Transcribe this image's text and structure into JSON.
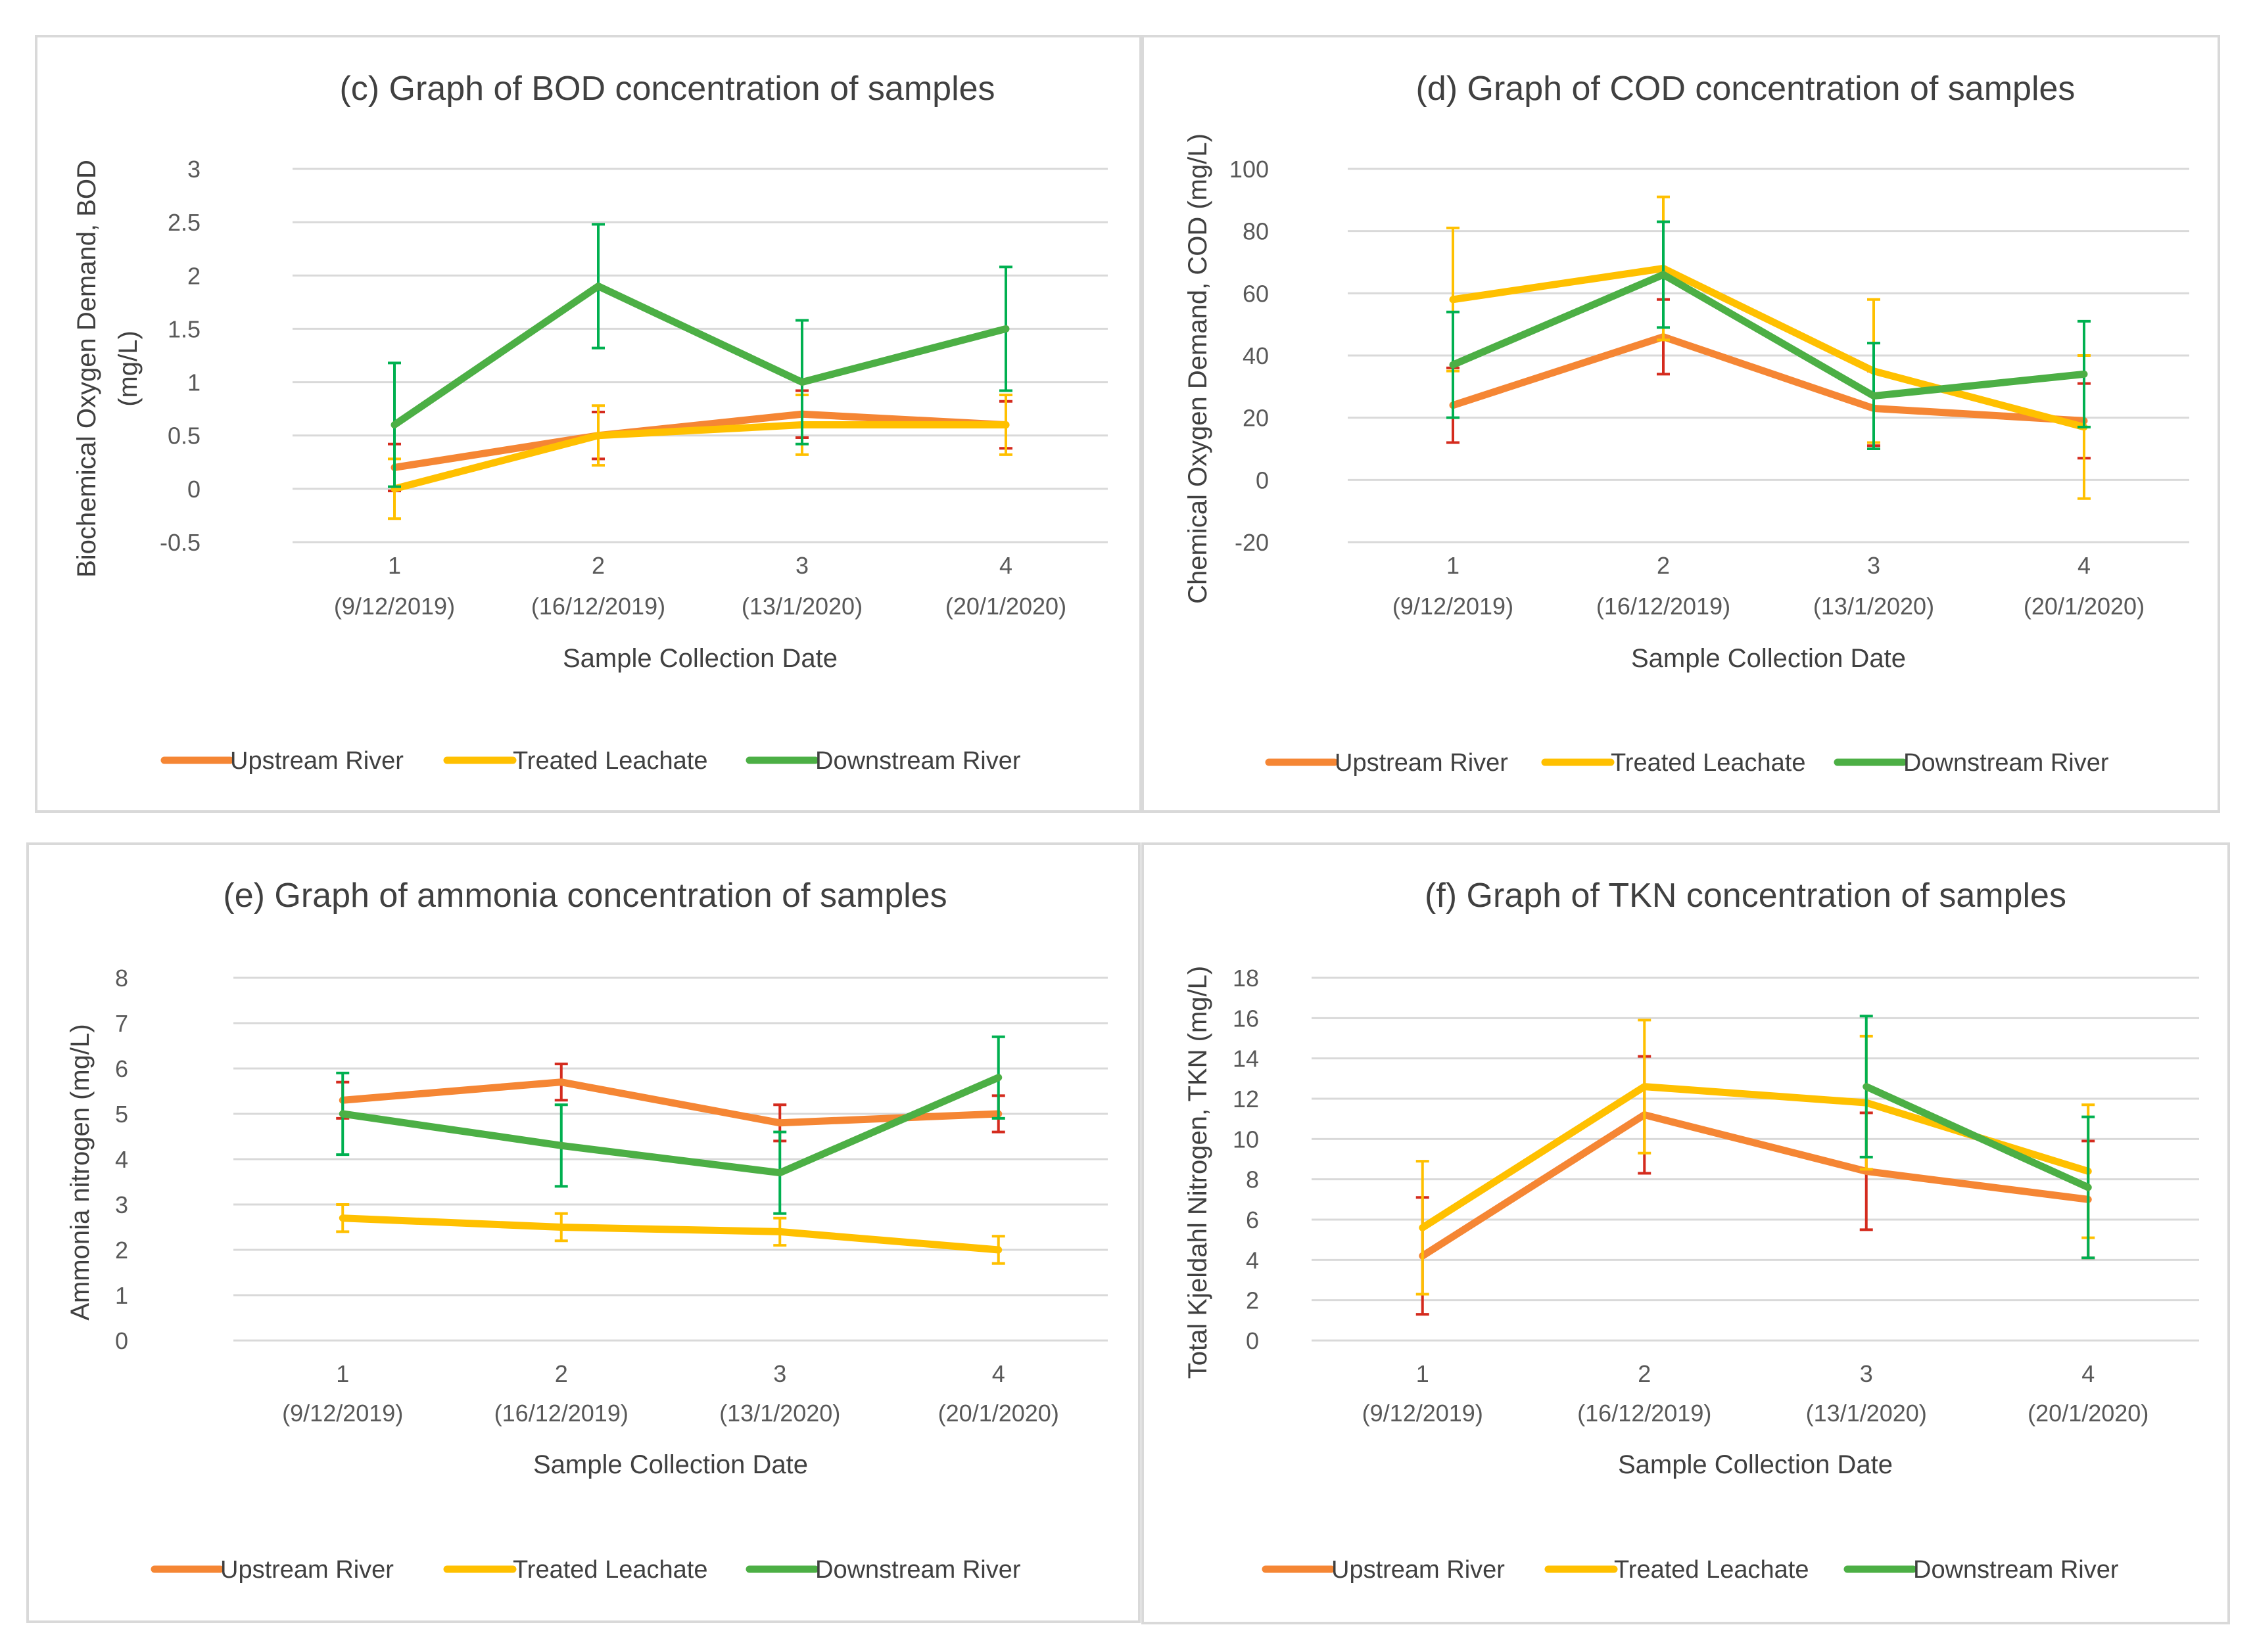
{
  "chart_data": [
    {
      "id": "c",
      "type": "line",
      "title": "(c) Graph of BOD concentration of samples",
      "xlabel": "Sample Collection Date",
      "ylabel": "Biochemical Oxygen Demand, BOD (mg/L)",
      "ylabel_lines": [
        "Biochemical Oxygen Demand, BOD",
        "(mg/L)"
      ],
      "ylim": [
        -0.5,
        3
      ],
      "yticks": [
        -0.5,
        0,
        0.5,
        1,
        1.5,
        2,
        2.5,
        3
      ],
      "ytick_labels": [
        "-0.5",
        "0",
        "0.5",
        "1",
        "1.5",
        "2",
        "2.5",
        "3"
      ],
      "categories": [
        {
          "num": "1",
          "date": "(9/12/2019)"
        },
        {
          "num": "2",
          "date": "(16/12/2019)"
        },
        {
          "num": "3",
          "date": "(13/1/2020)"
        },
        {
          "num": "4",
          "date": "(20/1/2020)"
        }
      ],
      "series": [
        {
          "name": "Upstream River",
          "color": "#F58634",
          "err_color": "#D42B1E",
          "values": [
            0.2,
            0.5,
            0.7,
            0.6
          ],
          "err": [
            0.22,
            0.22,
            0.22,
            0.22
          ]
        },
        {
          "name": "Treated Leachate",
          "color": "#FFC000",
          "err_color": "#FFC000",
          "values": [
            0.0,
            0.5,
            0.6,
            0.6
          ],
          "err": [
            0.28,
            0.28,
            0.28,
            0.28
          ]
        },
        {
          "name": "Downstream River",
          "color": "#4CAF45",
          "err_color": "#00B050",
          "values": [
            0.6,
            1.9,
            1.0,
            1.5
          ],
          "err": [
            0.58,
            0.58,
            0.58,
            0.58
          ]
        }
      ]
    },
    {
      "id": "d",
      "type": "line",
      "title": "(d) Graph of COD concentration of samples",
      "xlabel": "Sample Collection Date",
      "ylabel": "Chemical Oxygen Demand, COD (mg/L)",
      "ylabel_lines": [
        "Chemical Oxygen Demand, COD (mg/L)"
      ],
      "ylim": [
        -20,
        100
      ],
      "yticks": [
        -20,
        0,
        20,
        40,
        60,
        80,
        100
      ],
      "ytick_labels": [
        "-20",
        "0",
        "20",
        "40",
        "60",
        "80",
        "100"
      ],
      "categories": [
        {
          "num": "1",
          "date": "(9/12/2019)"
        },
        {
          "num": "2",
          "date": "(16/12/2019)"
        },
        {
          "num": "3",
          "date": "(13/1/2020)"
        },
        {
          "num": "4",
          "date": "(20/1/2020)"
        }
      ],
      "series": [
        {
          "name": "Upstream River",
          "color": "#F58634",
          "err_color": "#D42B1E",
          "values": [
            24,
            46,
            23,
            19
          ],
          "err": [
            12,
            12,
            12,
            12
          ]
        },
        {
          "name": "Treated Leachate",
          "color": "#FFC000",
          "err_color": "#FFC000",
          "values": [
            58,
            68,
            35,
            17
          ],
          "err": [
            23,
            23,
            23,
            23
          ]
        },
        {
          "name": "Downstream River",
          "color": "#4CAF45",
          "err_color": "#00B050",
          "values": [
            37,
            66,
            27,
            34
          ],
          "err": [
            17,
            17,
            17,
            17
          ]
        }
      ]
    },
    {
      "id": "e",
      "type": "line",
      "title": "(e) Graph of ammonia concentration of samples",
      "xlabel": "Sample Collection Date",
      "ylabel": "Ammonia nitrogen (mg/L)",
      "ylabel_lines": [
        "Ammonia nitrogen (mg/L)"
      ],
      "ylim": [
        0,
        8
      ],
      "yticks": [
        0,
        1,
        2,
        3,
        4,
        5,
        6,
        7,
        8
      ],
      "ytick_labels": [
        "0",
        "1",
        "2",
        "3",
        "4",
        "5",
        "6",
        "7",
        "8"
      ],
      "categories": [
        {
          "num": "1",
          "date": "(9/12/2019)"
        },
        {
          "num": "2",
          "date": "(16/12/2019)"
        },
        {
          "num": "3",
          "date": "(13/1/2020)"
        },
        {
          "num": "4",
          "date": "(20/1/2020)"
        }
      ],
      "series": [
        {
          "name": "Upstream River",
          "color": "#F58634",
          "err_color": "#D42B1E",
          "values": [
            5.3,
            5.7,
            4.8,
            5.0
          ],
          "err": [
            0.4,
            0.4,
            0.4,
            0.4
          ]
        },
        {
          "name": "Treated Leachate",
          "color": "#FFC000",
          "err_color": "#FFC000",
          "values": [
            2.7,
            2.5,
            2.4,
            2.0
          ],
          "err": [
            0.3,
            0.3,
            0.3,
            0.3
          ]
        },
        {
          "name": "Downstream River",
          "color": "#4CAF45",
          "err_color": "#00B050",
          "values": [
            5.0,
            4.3,
            3.7,
            5.8
          ],
          "err": [
            0.9,
            0.9,
            0.9,
            0.9
          ]
        }
      ]
    },
    {
      "id": "f",
      "type": "line",
      "title": "(f) Graph of TKN concentration of samples",
      "xlabel": "Sample Collection Date",
      "ylabel": "Total Kjeldahl Nitrogen, TKN (mg/L)",
      "ylabel_lines": [
        "Total Kjeldahl Nitrogen, TKN (mg/L)"
      ],
      "ylim": [
        0,
        18
      ],
      "yticks": [
        0,
        2,
        4,
        6,
        8,
        10,
        12,
        14,
        16,
        18
      ],
      "ytick_labels": [
        "0",
        "2",
        "4",
        "6",
        "8",
        "10",
        "12",
        "14",
        "16",
        "18"
      ],
      "categories": [
        {
          "num": "1",
          "date": "(9/12/2019)"
        },
        {
          "num": "2",
          "date": "(16/12/2019)"
        },
        {
          "num": "3",
          "date": "(13/1/2020)"
        },
        {
          "num": "4",
          "date": "(20/1/2020)"
        }
      ],
      "series": [
        {
          "name": "Upstream River",
          "color": "#F58634",
          "err_color": "#D42B1E",
          "values": [
            4.2,
            11.2,
            8.4,
            7.0
          ],
          "err": [
            2.9,
            2.9,
            2.9,
            2.9
          ]
        },
        {
          "name": "Treated Leachate",
          "color": "#FFC000",
          "err_color": "#FFC000",
          "values": [
            5.6,
            12.6,
            11.8,
            8.4
          ],
          "err": [
            3.3,
            3.3,
            3.3,
            3.3
          ]
        },
        {
          "name": "Downstream River",
          "color": "#4CAF45",
          "err_color": "#00B050",
          "values": [
            null,
            null,
            12.6,
            7.6
          ],
          "err": [
            null,
            null,
            3.5,
            3.5
          ]
        }
      ]
    }
  ]
}
